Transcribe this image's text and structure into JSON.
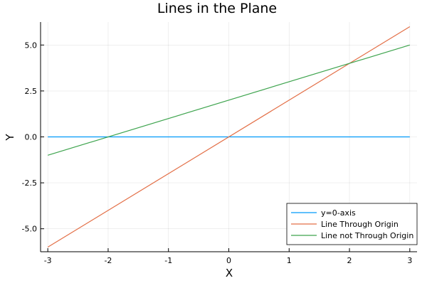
{
  "chart_data": {
    "type": "line",
    "title": "Lines in the Plane",
    "xlabel": "X",
    "ylabel": "Y",
    "xlim": [
      -3.12,
      3.12
    ],
    "ylim": [
      -6.25,
      6.25
    ],
    "xticks": [
      -3,
      -2,
      -1,
      0,
      1,
      2,
      3
    ],
    "xtick_labels": [
      "-3",
      "-2",
      "-1",
      "0",
      "1",
      "2",
      "3"
    ],
    "yticks": [
      -5,
      -2.5,
      0,
      2.5,
      5
    ],
    "ytick_labels": [
      "-5.0",
      "-2.5",
      "0.0",
      "2.5",
      "5.0"
    ],
    "grid": true,
    "legend_position": "bottom-right",
    "series": [
      {
        "name": "y=0-axis",
        "color": "#009AFA",
        "x": [
          -3,
          3
        ],
        "y": [
          0,
          0
        ]
      },
      {
        "name": "Line Through Origin",
        "color": "#E36F47",
        "x": [
          -3,
          3
        ],
        "y": [
          -6,
          6
        ]
      },
      {
        "name": "Line not Through Origin",
        "color": "#3EA44E",
        "x": [
          -3,
          3
        ],
        "y": [
          -1,
          5
        ]
      }
    ]
  }
}
